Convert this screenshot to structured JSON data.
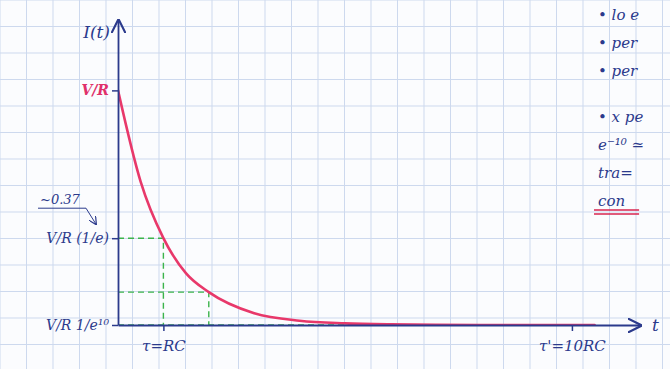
{
  "chart_data": {
    "type": "line",
    "y_label": "I(t)",
    "x_label": "t",
    "x": [
      0,
      0.5,
      1,
      1.5,
      2,
      3,
      4,
      5,
      6,
      7,
      8,
      9,
      10,
      10.5
    ],
    "values": [
      1,
      0.61,
      0.37,
      0.22,
      0.14,
      0.05,
      0.018,
      0.007,
      0.0025,
      0.0009,
      0.0003,
      0.0001,
      5e-05,
      3e-05
    ],
    "color": "#e8386a",
    "line_style": "solid",
    "xlim": [
      0,
      11.5
    ],
    "ylim": [
      0,
      1.3
    ],
    "xticks": [
      {
        "value": 1,
        "label": "τ=RC"
      },
      {
        "value": 10,
        "label": "τ'=10RC"
      }
    ],
    "yticks": [
      {
        "value": 1,
        "label": "V/R"
      },
      {
        "value": 0.37,
        "label": "V/R (1/e)"
      },
      {
        "value": 4.54e-05,
        "label": "V/R 1/e¹⁰"
      }
    ],
    "guide_points": {
      "x": [
        1,
        2,
        10
      ],
      "y": [
        0.37,
        0.14,
        4.54e-05
      ]
    },
    "callout": "~0.37",
    "annotations": [
      "• lo e",
      "• per",
      "• per",
      "• x pe",
      "e⁻¹⁰ ≃",
      "tra=",
      "con"
    ]
  }
}
